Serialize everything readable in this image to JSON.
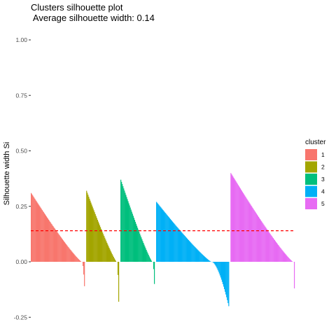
{
  "chart_data": {
    "type": "bar",
    "title": "Clusters silhouette plot",
    "subtitle": " Average silhouette width: 0.14",
    "xlabel": "",
    "ylabel": "Silhouette width Si",
    "ylim": [
      -0.27,
      1.05
    ],
    "yticks": [
      -0.25,
      0.0,
      0.25,
      0.5,
      0.75,
      1.0
    ],
    "ytick_labels": [
      "-0.25",
      "0.00",
      "0.25",
      "0.50",
      "0.75",
      "1.00"
    ],
    "grid": false,
    "average_line": {
      "value": 0.14,
      "color": "#FF0000",
      "style": "dashed"
    },
    "legend": {
      "title": "cluster",
      "position": "right"
    },
    "series": [
      {
        "name": "1",
        "color": "#F8766D",
        "count": 74,
        "max": 0.31,
        "min": -0.11,
        "neg_count": 4
      },
      {
        "name": "2",
        "color": "#A3A500",
        "count": 45,
        "max": 0.32,
        "min": -0.18,
        "neg_count": 3
      },
      {
        "name": "3",
        "color": "#00BF7D",
        "count": 47,
        "max": 0.37,
        "min": -0.1,
        "neg_count": 3
      },
      {
        "name": "4",
        "color": "#00B0F6",
        "count": 100,
        "max": 0.27,
        "min": -0.2,
        "neg_count": 24
      },
      {
        "name": "5",
        "color": "#E76BF3",
        "count": 88,
        "max": 0.4,
        "min": -0.12,
        "neg_count": 2
      }
    ]
  }
}
